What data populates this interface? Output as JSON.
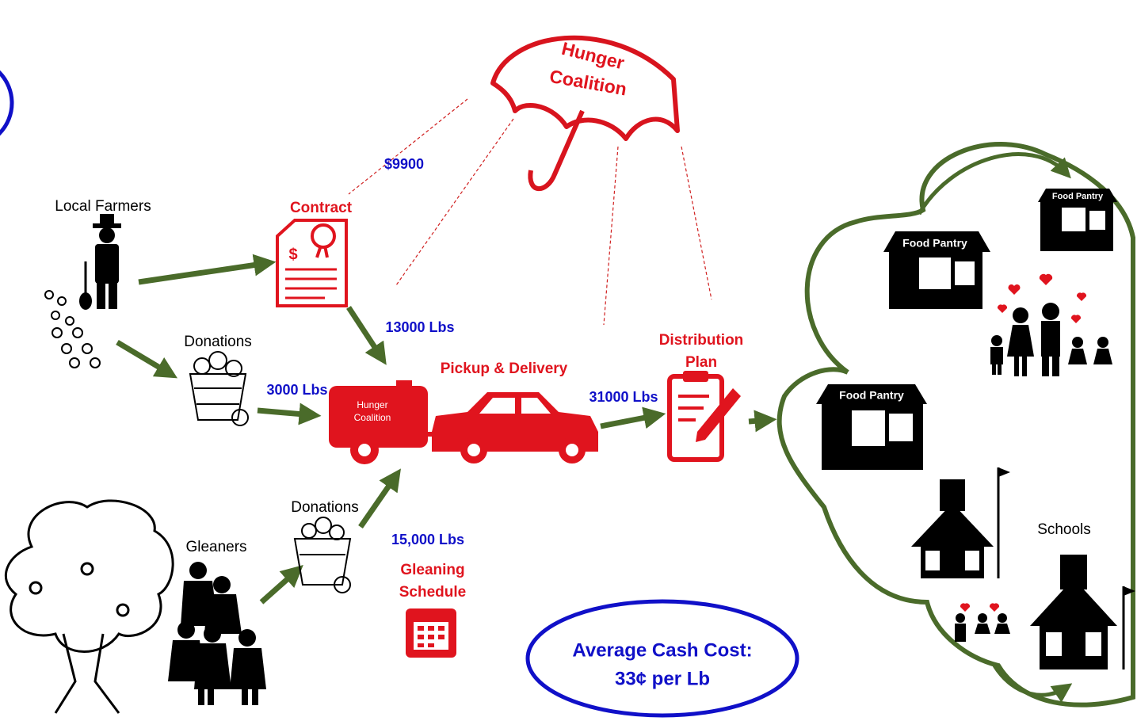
{
  "umbrella_label": [
    "Hunger",
    "Coalition"
  ],
  "sources": {
    "farmers": "Local Farmers",
    "farm_donations": "Donations",
    "gleaners": "Gleaners",
    "glean_donations": "Donations"
  },
  "flows": {
    "contract_cost": "$9900",
    "contract_lbs": "13000 Lbs",
    "donation_lbs": "3000 Lbs",
    "gleaning_lbs": "15,000 Lbs",
    "distribution_lbs": "31000 Lbs"
  },
  "steps": {
    "contract": "Contract",
    "pickup": "Pickup & Delivery",
    "truck_label": [
      "Hunger",
      "Coalition"
    ],
    "distribution": [
      "Distribution",
      "Plan"
    ],
    "gleaning": [
      "Gleaning",
      "Schedule"
    ]
  },
  "destinations": {
    "pantries": [
      "Food Pantry",
      "Food Pantry",
      "Food Pantry"
    ],
    "schools": "Schools"
  },
  "summary": [
    "Average Cash Cost:",
    "33¢ per Lb"
  ]
}
